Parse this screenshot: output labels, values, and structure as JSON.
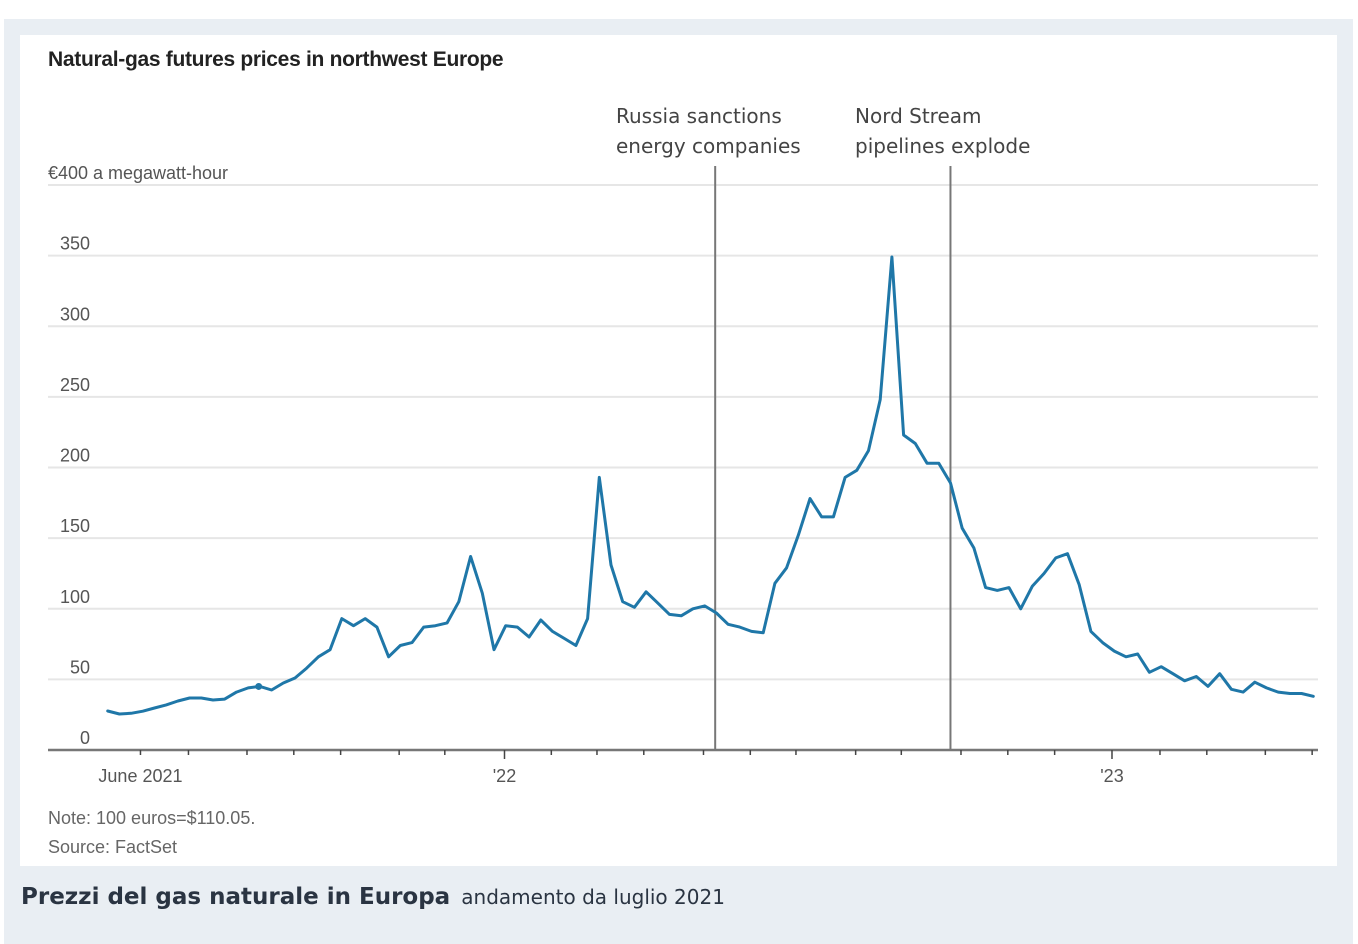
{
  "caption": {
    "title": "Prezzi del gas naturale in Europa",
    "subtitle": "andamento da luglio 2021"
  },
  "colors": {
    "line": "#1f77a8",
    "grid": "#e6e6e6",
    "axis": "#777777",
    "event_line": "#777777",
    "panel_bg": "#e9eef3"
  },
  "chart_data": {
    "type": "line",
    "title": "Natural-gas futures prices in northwest Europe",
    "ylabel": "€400 a megawatt-hour",
    "xlabel": "",
    "ylim": [
      0,
      400
    ],
    "y_ticks": [
      {
        "value": 400,
        "label": "€400 a megawatt-hour"
      },
      {
        "value": 350,
        "label": "350"
      },
      {
        "value": 300,
        "label": "300"
      },
      {
        "value": 250,
        "label": "250"
      },
      {
        "value": 200,
        "label": "200"
      },
      {
        "value": 150,
        "label": "150"
      },
      {
        "value": 100,
        "label": "100"
      },
      {
        "value": 50,
        "label": "50"
      },
      {
        "value": 0,
        "label": "0"
      }
    ],
    "x_unit": "weeks since first observation (late May 2021)",
    "xlim": [
      -5.1,
      103.4
    ],
    "x_ticks": [
      {
        "week": 2.8,
        "label": "June 2021",
        "major": false
      },
      {
        "week": 6.9,
        "label": "",
        "major": false
      },
      {
        "week": 11.9,
        "label": "",
        "major": false
      },
      {
        "week": 15.9,
        "label": "",
        "major": false
      },
      {
        "week": 19.9,
        "label": "",
        "major": false
      },
      {
        "week": 24.9,
        "label": "",
        "major": false
      },
      {
        "week": 28.8,
        "label": "",
        "major": false
      },
      {
        "week": 33.9,
        "label": "'22",
        "major": true
      },
      {
        "week": 37.9,
        "label": "",
        "major": false
      },
      {
        "week": 41.8,
        "label": "",
        "major": false
      },
      {
        "week": 45.8,
        "label": "",
        "major": false
      },
      {
        "week": 50.9,
        "label": "",
        "major": false
      },
      {
        "week": 54.9,
        "label": "",
        "major": false
      },
      {
        "week": 58.8,
        "label": "",
        "major": false
      },
      {
        "week": 63.9,
        "label": "",
        "major": false
      },
      {
        "week": 67.8,
        "label": "",
        "major": false
      },
      {
        "week": 72.9,
        "label": "",
        "major": false
      },
      {
        "week": 76.9,
        "label": "",
        "major": false
      },
      {
        "week": 80.9,
        "label": "",
        "major": false
      },
      {
        "week": 85.8,
        "label": "'23",
        "major": true
      },
      {
        "week": 89.9,
        "label": "",
        "major": false
      },
      {
        "week": 93.9,
        "label": "",
        "major": false
      },
      {
        "week": 98.9,
        "label": "",
        "major": false
      },
      {
        "week": 102.9,
        "label": "",
        "major": false
      }
    ],
    "annotations": [
      {
        "week": 51.9,
        "lines": [
          "Russia sanctions",
          "energy companies"
        ]
      },
      {
        "week": 72.0,
        "lines": [
          "Nord Stream",
          "pipelines explode"
        ]
      }
    ],
    "highlight_point": {
      "week": 12.9,
      "value": 45
    },
    "series": [
      {
        "name": "Natural-gas futures price (€/MWh)",
        "x": [
          0,
          1,
          2,
          3,
          4,
          5,
          6,
          7,
          8,
          9,
          10,
          11,
          12,
          13,
          14,
          15,
          16,
          17,
          18,
          19,
          20,
          21,
          22,
          23,
          24,
          25,
          26,
          27,
          28,
          29,
          30,
          31,
          32,
          33,
          34,
          35,
          36,
          37,
          38,
          39,
          40,
          41,
          42,
          43,
          44,
          45,
          46,
          47,
          48,
          49,
          50,
          51,
          52,
          53,
          54,
          55,
          56,
          57,
          58,
          59,
          60,
          61,
          62,
          63,
          64,
          65,
          66,
          67,
          68,
          69,
          70,
          71,
          72,
          73,
          74,
          75,
          76,
          77,
          78,
          79,
          80,
          81,
          82,
          83,
          84,
          85,
          86,
          87,
          88,
          89,
          90,
          91,
          92,
          93,
          94,
          95,
          96,
          97,
          98,
          99,
          100,
          101,
          102,
          103
        ],
        "values": [
          27.6,
          25.5,
          26,
          27.5,
          29.7,
          31.9,
          34.7,
          36.8,
          36.8,
          35.4,
          36,
          41,
          44,
          45,
          42.5,
          47.4,
          51,
          58,
          66,
          71,
          93,
          88,
          93,
          87,
          66,
          74,
          76,
          87,
          88,
          90,
          105,
          137,
          111,
          71,
          88,
          87,
          80,
          92,
          84,
          79,
          74,
          93,
          193,
          131,
          105,
          101,
          112,
          104,
          96,
          95,
          100,
          102,
          97,
          89,
          87,
          84,
          83,
          118,
          129,
          152,
          178,
          165,
          165,
          193,
          198,
          212,
          248,
          349,
          223,
          217,
          203,
          203,
          189,
          157,
          143,
          115,
          113,
          115,
          100,
          116,
          125,
          136,
          139,
          117,
          84,
          76,
          70,
          66,
          68,
          55,
          59,
          54,
          49,
          52,
          45,
          54,
          43,
          41,
          48,
          44,
          41,
          40,
          40,
          38
        ]
      }
    ]
  },
  "footer": {
    "note": "Note: 100 euros=$110.05.",
    "source": "Source: FactSet"
  }
}
